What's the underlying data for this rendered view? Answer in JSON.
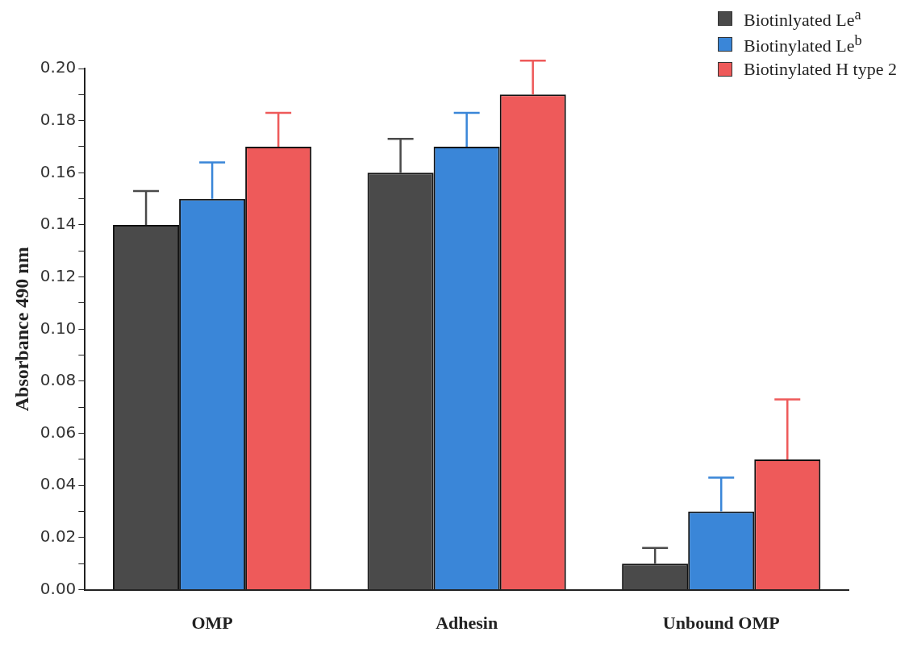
{
  "chart_data": {
    "type": "bar",
    "ylabel": "Absorbance 490 nm",
    "categories": [
      "OMP",
      "Adhesin",
      "Unbound OMP"
    ],
    "series": [
      {
        "name": "Biotinlyated Le$^{a}$",
        "color": "#4a4a4a",
        "values": [
          0.14,
          0.16,
          0.01
        ],
        "errors": [
          [
            0.14,
            0.153
          ],
          [
            0.16,
            0.173
          ],
          [
            0.01,
            0.016
          ]
        ]
      },
      {
        "name": "Biotinylated Le$^{b}$",
        "color": "#3a86d8",
        "values": [
          0.15,
          0.17,
          0.03
        ],
        "errors": [
          [
            0.15,
            0.164
          ],
          [
            0.17,
            0.183
          ],
          [
            0.03,
            0.043
          ]
        ]
      },
      {
        "name": "Biotinylated H type 2",
        "color": "#ee5a5a",
        "values": [
          0.17,
          0.19,
          0.05
        ],
        "errors": [
          [
            0.17,
            0.183
          ],
          [
            0.19,
            0.203
          ],
          [
            0.05,
            0.073
          ]
        ]
      }
    ],
    "ylim": [
      0,
      0.2
    ],
    "yticks": [
      {
        "value": 0,
        "label": "0.00"
      },
      {
        "value": 0.01,
        "label": null
      },
      {
        "value": 0.02,
        "label": "0.02"
      },
      {
        "value": 0.03,
        "label": null
      },
      {
        "value": 0.04,
        "label": "0.04"
      },
      {
        "value": 0.05,
        "label": null
      },
      {
        "value": 0.06,
        "label": "0.06"
      },
      {
        "value": 0.07,
        "label": null
      },
      {
        "value": 0.08,
        "label": "0.08"
      },
      {
        "value": 0.09,
        "label": null
      },
      {
        "value": 0.1,
        "label": "0.10"
      },
      {
        "value": 0.11,
        "label": null
      },
      {
        "value": 0.12,
        "label": "0.12"
      },
      {
        "value": 0.13,
        "label": null
      },
      {
        "value": 0.14,
        "label": "0.14"
      },
      {
        "value": 0.15,
        "label": null
      },
      {
        "value": 0.16,
        "label": "0.16"
      },
      {
        "value": 0.17,
        "label": null
      },
      {
        "value": 0.18,
        "label": "0.18"
      },
      {
        "value": 0.19,
        "label": null
      },
      {
        "value": 0.2,
        "label": "0.20"
      }
    ],
    "grid": false,
    "legend": "top right"
  }
}
